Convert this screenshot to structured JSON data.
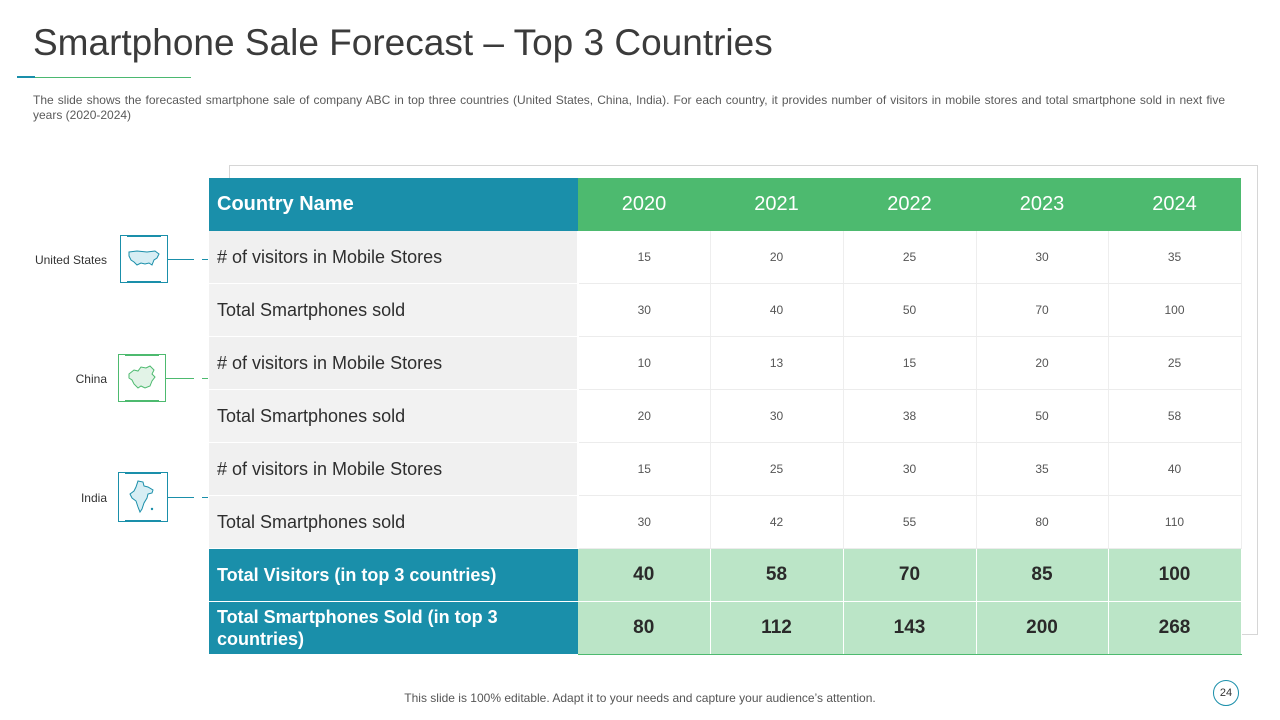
{
  "slide": {
    "title": "Smartphone Sale Forecast – Top 3 Countries",
    "description": "The slide shows the forecasted smartphone sale of company ABC in top three countries (United States, China, India). For each country, it provides  number of visitors in mobile stores and total smartphone sold in next five  years (2020-2024)",
    "footer": "This slide is 100% editable. Adapt it to your needs and capture your audience’s attention.",
    "page_number": "24"
  },
  "colors": {
    "teal": "#1a8faa",
    "green": "#4dba6f",
    "light_green": "#bbe5c7"
  },
  "countries": [
    {
      "name": "United States",
      "icon": "us-map-icon"
    },
    {
      "name": "China",
      "icon": "china-map-icon"
    },
    {
      "name": "India",
      "icon": "india-map-icon"
    }
  ],
  "table": {
    "header_label": "Country Name",
    "years": [
      "2020",
      "2021",
      "2022",
      "2023",
      "2024"
    ],
    "rows": [
      {
        "label": "# of visitors in Mobile Stores",
        "values": [
          "15",
          "20",
          "25",
          "30",
          "35"
        ]
      },
      {
        "label": "Total Smartphones sold",
        "values": [
          "30",
          "40",
          "50",
          "70",
          "100"
        ]
      },
      {
        "label": "# of visitors in Mobile Stores",
        "values": [
          "10",
          "13",
          "15",
          "20",
          "25"
        ]
      },
      {
        "label": "Total Smartphones sold",
        "values": [
          "20",
          "30",
          "38",
          "50",
          "58"
        ]
      },
      {
        "label": "# of visitors in Mobile Stores",
        "values": [
          "15",
          "25",
          "30",
          "35",
          "40"
        ]
      },
      {
        "label": "Total Smartphones sold",
        "values": [
          "30",
          "42",
          "55",
          "80",
          "110"
        ]
      }
    ],
    "totals": [
      {
        "label": "Total Visitors (in top 3 countries)",
        "values": [
          "40",
          "58",
          "70",
          "85",
          "100"
        ]
      },
      {
        "label": "Total Smartphones Sold (in top 3 countries)",
        "values": [
          "80",
          "112",
          "143",
          "200",
          "268"
        ]
      }
    ]
  }
}
